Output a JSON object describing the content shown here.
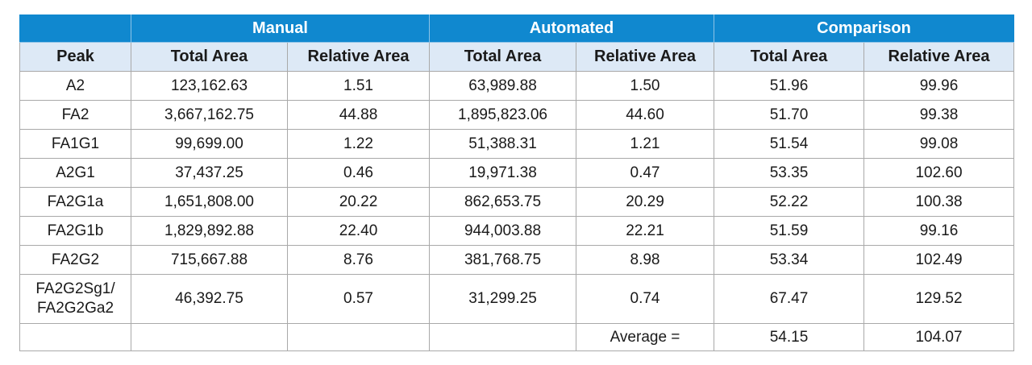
{
  "groups": {
    "manual": "Manual",
    "automated": "Automated",
    "comparison": "Comparison"
  },
  "columns": {
    "peak": "Peak",
    "manual_total": "Total Area",
    "manual_relative": "Relative Area",
    "automated_total": "Total Area",
    "automated_relative": "Relative Area",
    "comparison_total": "Total Area",
    "comparison_relative": "Relative Area"
  },
  "rows": [
    {
      "peak": "A2",
      "manual_total": "123,162.63",
      "manual_relative": "1.51",
      "automated_total": "63,989.88",
      "automated_relative": "1.50",
      "comparison_total": "51.96",
      "comparison_relative": "99.96"
    },
    {
      "peak": "FA2",
      "manual_total": "3,667,162.75",
      "manual_relative": "44.88",
      "automated_total": "1,895,823.06",
      "automated_relative": "44.60",
      "comparison_total": "51.70",
      "comparison_relative": "99.38"
    },
    {
      "peak": "FA1G1",
      "manual_total": "99,699.00",
      "manual_relative": "1.22",
      "automated_total": "51,388.31",
      "automated_relative": "1.21",
      "comparison_total": "51.54",
      "comparison_relative": "99.08"
    },
    {
      "peak": "A2G1",
      "manual_total": "37,437.25",
      "manual_relative": "0.46",
      "automated_total": "19,971.38",
      "automated_relative": "0.47",
      "comparison_total": "53.35",
      "comparison_relative": "102.60"
    },
    {
      "peak": "FA2G1a",
      "manual_total": "1,651,808.00",
      "manual_relative": "20.22",
      "automated_total": "862,653.75",
      "automated_relative": "20.29",
      "comparison_total": "52.22",
      "comparison_relative": "100.38"
    },
    {
      "peak": "FA2G1b",
      "manual_total": "1,829,892.88",
      "manual_relative": "22.40",
      "automated_total": "944,003.88",
      "automated_relative": "22.21",
      "comparison_total": "51.59",
      "comparison_relative": "99.16"
    },
    {
      "peak": "FA2G2",
      "manual_total": "715,667.88",
      "manual_relative": "8.76",
      "automated_total": "381,768.75",
      "automated_relative": "8.98",
      "comparison_total": "53.34",
      "comparison_relative": "102.49"
    },
    {
      "peak": "FA2G2Sg1/ FA2G2Ga2",
      "manual_total": "46,392.75",
      "manual_relative": "0.57",
      "automated_total": "31,299.25",
      "automated_relative": "0.74",
      "comparison_total": "67.47",
      "comparison_relative": "129.52"
    }
  ],
  "average": {
    "label": "Average =",
    "comparison_total": "54.15",
    "comparison_relative": "104.07"
  }
}
